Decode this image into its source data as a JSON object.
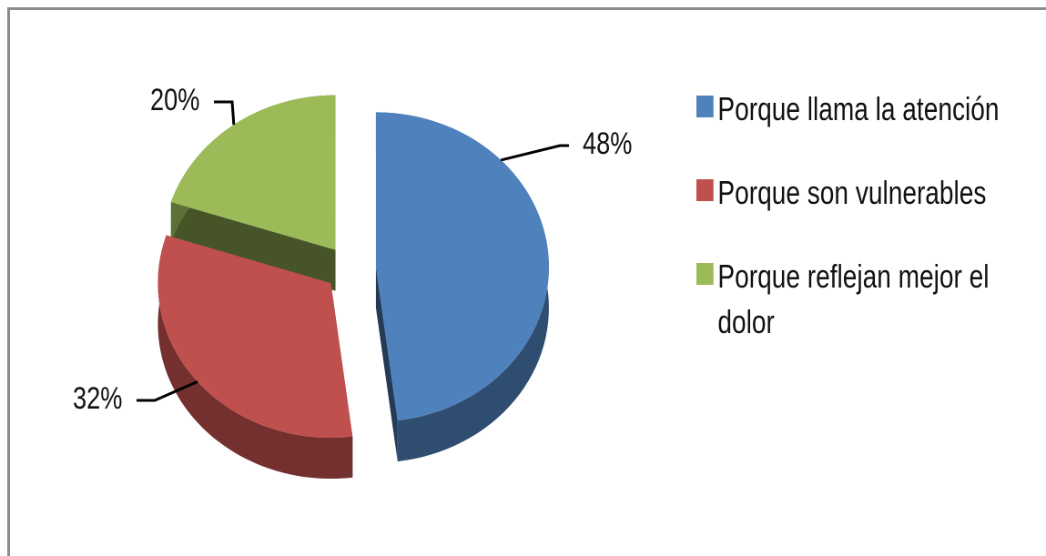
{
  "chart_data": {
    "type": "pie",
    "categories": [
      "Porque llama la atención",
      "Porque son vulnerables",
      "Porque reflejan mejor el dolor"
    ],
    "values": [
      48,
      32,
      20
    ],
    "value_labels": [
      "48%",
      "32%",
      "20%"
    ],
    "colors": [
      "#4f81bd",
      "#c0504d",
      "#9bbb59"
    ],
    "legend": "right"
  }
}
